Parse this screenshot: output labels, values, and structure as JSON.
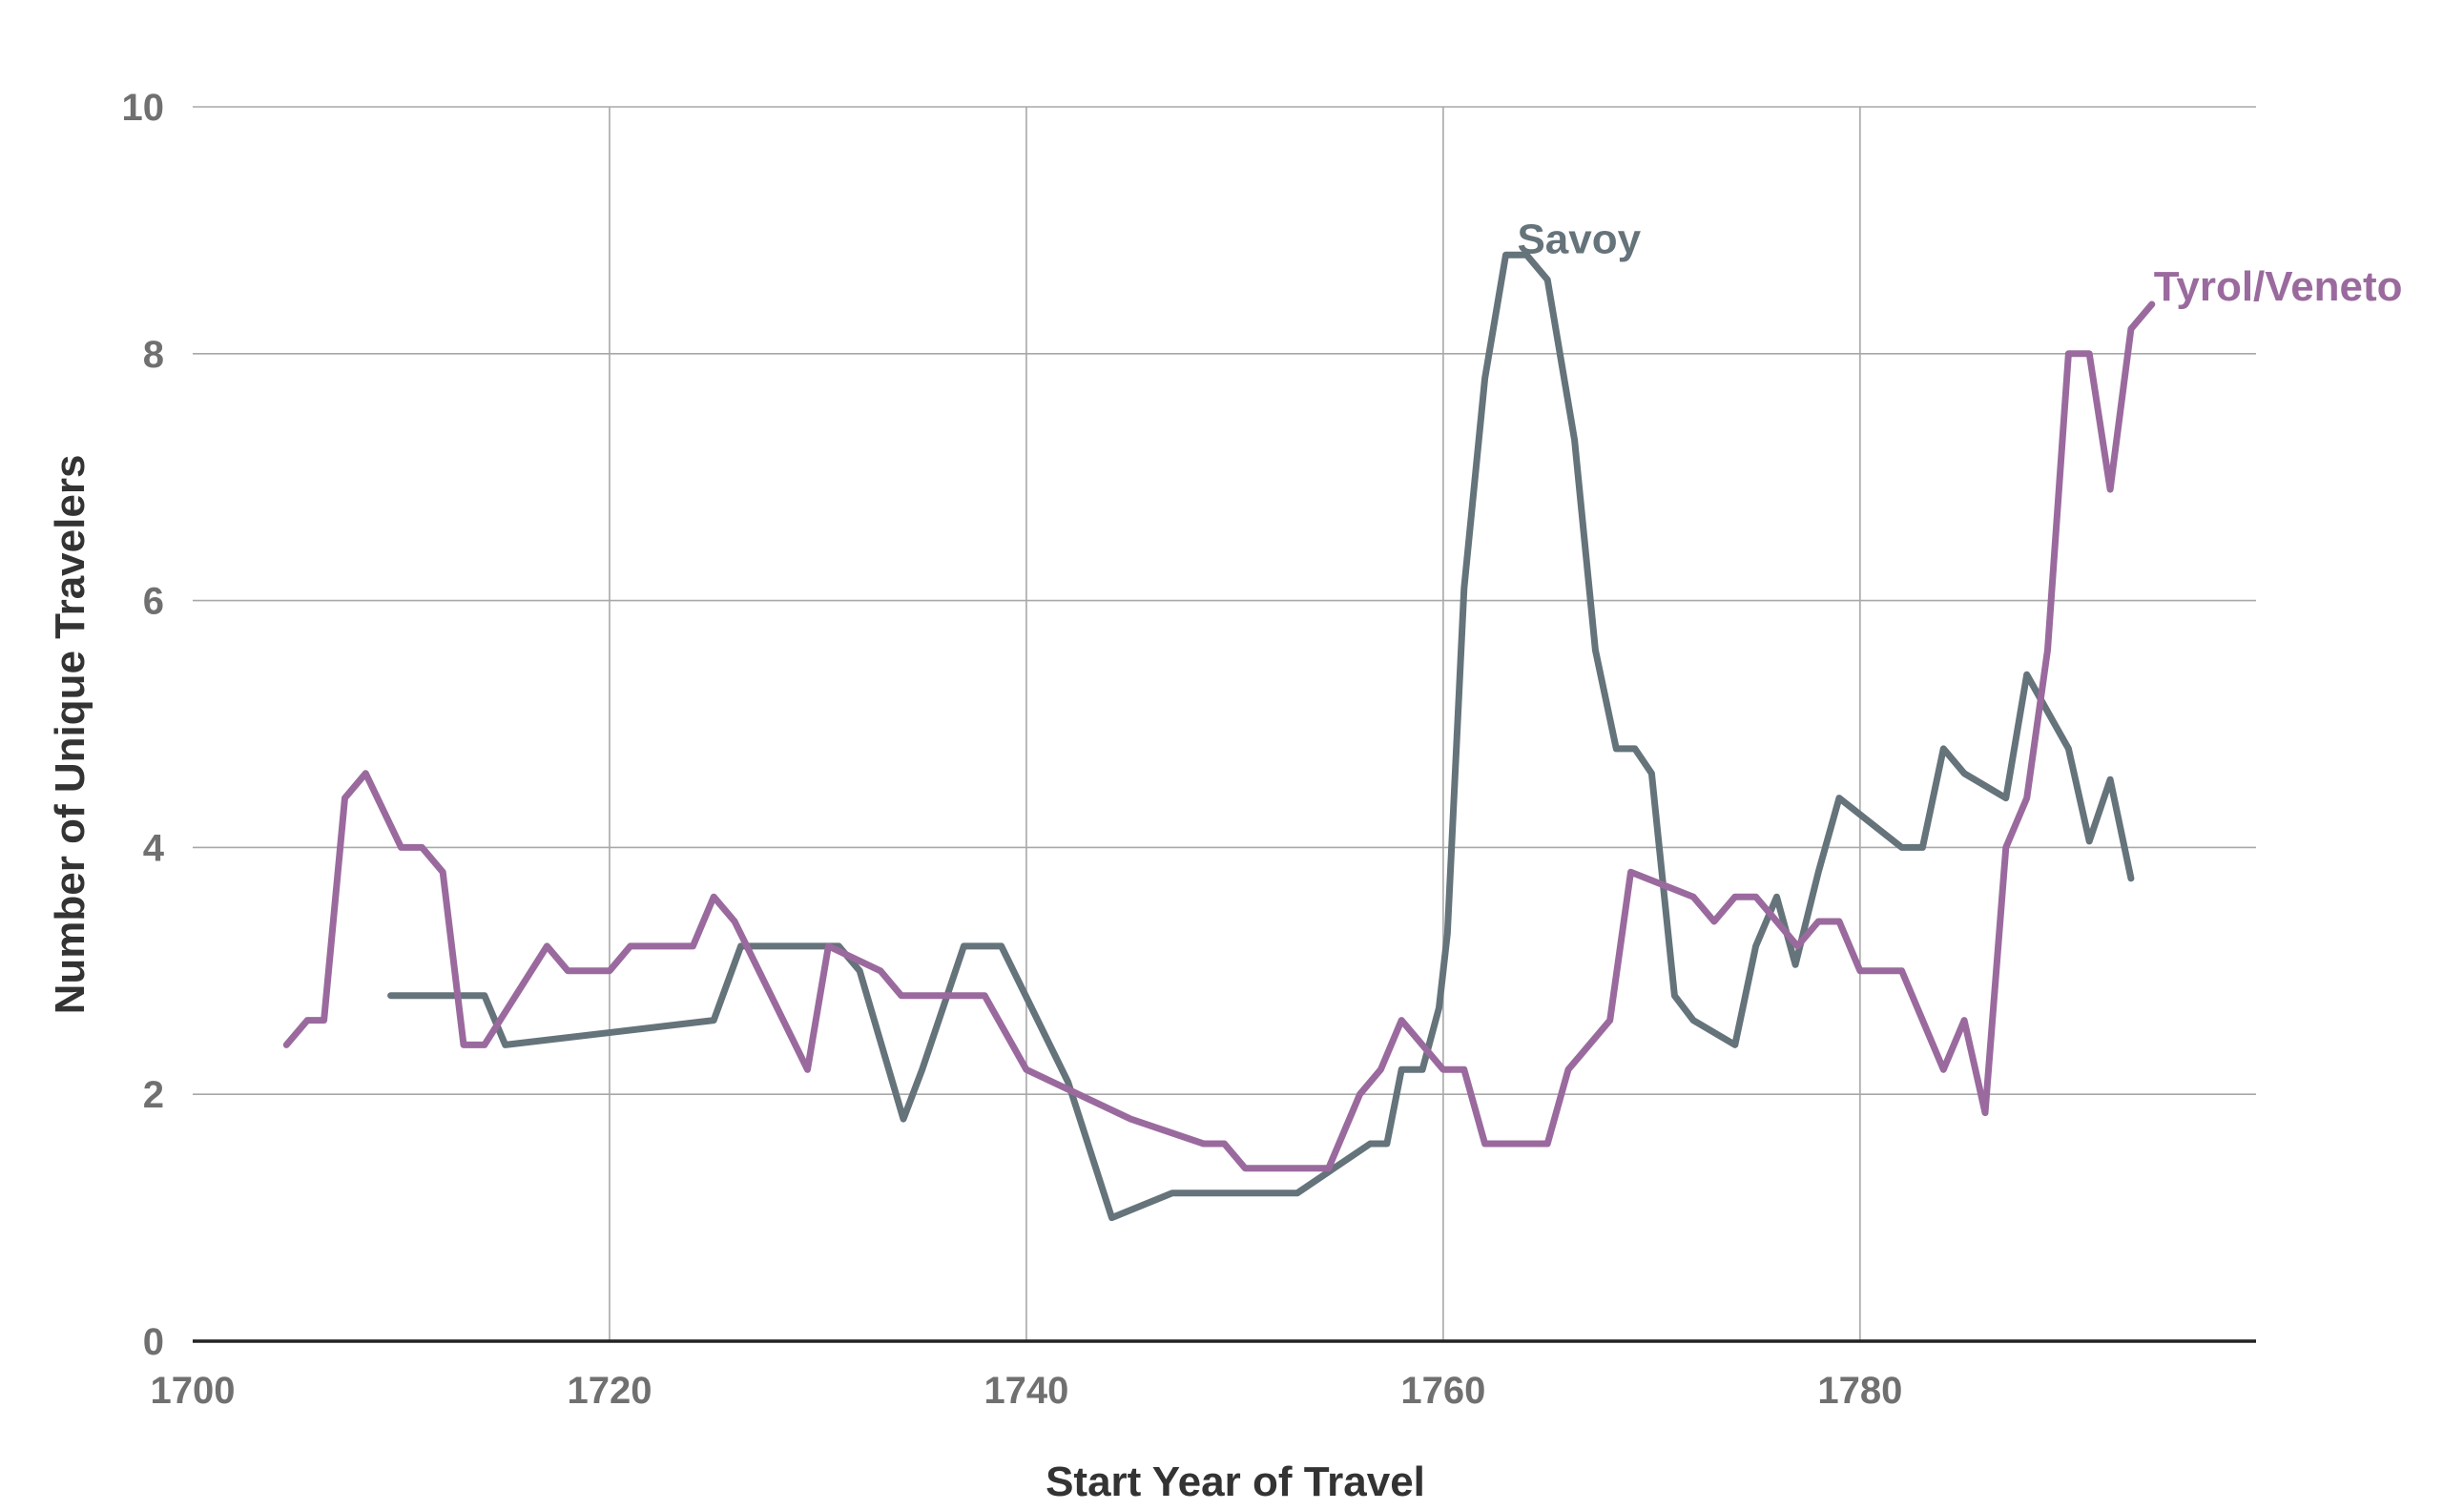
{
  "chart_data": {
    "type": "line",
    "title": "",
    "xlabel": "Start Year of Travel",
    "ylabel": "Number of Unique Travelers",
    "xlim": [
      1700,
      1799
    ],
    "ylim": [
      0,
      10
    ],
    "x_ticks": [
      1700,
      1720,
      1740,
      1760,
      1780
    ],
    "y_ticks": [
      0,
      2,
      4,
      6,
      8,
      10
    ],
    "grid": true,
    "legend": "inline labels at series ends",
    "series": [
      {
        "name": "Savoy",
        "color": "#65737a",
        "points": [
          [
            1709.5,
            2.8
          ],
          [
            1714,
            2.8
          ],
          [
            1715,
            2.4
          ],
          [
            1725,
            2.6
          ],
          [
            1726.3,
            3.2
          ],
          [
            1731,
            3.2
          ],
          [
            1732,
            3.0
          ],
          [
            1734.1,
            1.8
          ],
          [
            1735,
            2.2
          ],
          [
            1737,
            3.2
          ],
          [
            1738.8,
            3.2
          ],
          [
            1742,
            2.1
          ],
          [
            1744.1,
            1.0
          ],
          [
            1747,
            1.2
          ],
          [
            1753,
            1.2
          ],
          [
            1756.5,
            1.6
          ],
          [
            1757.3,
            1.6
          ],
          [
            1758,
            2.2
          ],
          [
            1759,
            2.2
          ],
          [
            1759.8,
            2.7
          ],
          [
            1760.2,
            3.3
          ],
          [
            1761,
            6.1
          ],
          [
            1762,
            7.8
          ],
          [
            1763,
            8.8
          ],
          [
            1764,
            8.8
          ],
          [
            1765,
            8.6
          ],
          [
            1766.3,
            7.3
          ],
          [
            1767.3,
            5.6
          ],
          [
            1768.3,
            4.8
          ],
          [
            1769.2,
            4.8
          ],
          [
            1770,
            4.6
          ],
          [
            1771.1,
            2.8
          ],
          [
            1772,
            2.6
          ],
          [
            1774,
            2.4
          ],
          [
            1775,
            3.2
          ],
          [
            1776,
            3.6
          ],
          [
            1776.9,
            3.05
          ],
          [
            1778,
            3.8
          ],
          [
            1779,
            4.4
          ],
          [
            1782,
            4.0
          ],
          [
            1783,
            4.0
          ],
          [
            1784,
            4.8
          ],
          [
            1785,
            4.6
          ],
          [
            1787,
            4.4
          ],
          [
            1788,
            5.4
          ],
          [
            1790,
            4.8
          ],
          [
            1791,
            4.05
          ],
          [
            1792,
            4.55
          ],
          [
            1793,
            3.75
          ]
        ]
      },
      {
        "name": "Tyrol/Veneto",
        "color": "#9a6a9e",
        "points": [
          [
            1704.5,
            2.4
          ],
          [
            1705.5,
            2.6
          ],
          [
            1706.3,
            2.6
          ],
          [
            1707.3,
            4.4
          ],
          [
            1708.3,
            4.6
          ],
          [
            1710,
            4.0
          ],
          [
            1711,
            4.0
          ],
          [
            1712,
            3.8
          ],
          [
            1713,
            2.4
          ],
          [
            1714,
            2.4
          ],
          [
            1717,
            3.2
          ],
          [
            1718,
            3.0
          ],
          [
            1720,
            3.0
          ],
          [
            1721,
            3.2
          ],
          [
            1724,
            3.2
          ],
          [
            1725,
            3.6
          ],
          [
            1726,
            3.4
          ],
          [
            1729.5,
            2.2
          ],
          [
            1730.5,
            3.2
          ],
          [
            1733,
            3.0
          ],
          [
            1734,
            2.8
          ],
          [
            1738,
            2.8
          ],
          [
            1740,
            2.2
          ],
          [
            1745,
            1.8
          ],
          [
            1748.5,
            1.6
          ],
          [
            1749.5,
            1.6
          ],
          [
            1750.5,
            1.4
          ],
          [
            1754.5,
            1.4
          ],
          [
            1756,
            2.0
          ],
          [
            1757,
            2.2
          ],
          [
            1758,
            2.6
          ],
          [
            1760,
            2.2
          ],
          [
            1761,
            2.2
          ],
          [
            1762,
            1.6
          ],
          [
            1765,
            1.6
          ],
          [
            1766,
            2.2
          ],
          [
            1768,
            2.6
          ],
          [
            1769,
            3.8
          ],
          [
            1772,
            3.6
          ],
          [
            1773,
            3.4
          ],
          [
            1774,
            3.6
          ],
          [
            1775,
            3.6
          ],
          [
            1776,
            3.4
          ],
          [
            1777,
            3.2
          ],
          [
            1778,
            3.4
          ],
          [
            1779,
            3.4
          ],
          [
            1780,
            3.0
          ],
          [
            1782,
            3.0
          ],
          [
            1784,
            2.2
          ],
          [
            1785,
            2.6
          ],
          [
            1786,
            1.85
          ],
          [
            1787,
            4.0
          ],
          [
            1788,
            4.4
          ],
          [
            1789,
            5.6
          ],
          [
            1790,
            8.0
          ],
          [
            1791,
            8.0
          ],
          [
            1792,
            6.9
          ],
          [
            1793,
            8.2
          ],
          [
            1794,
            8.4
          ]
        ]
      }
    ]
  }
}
